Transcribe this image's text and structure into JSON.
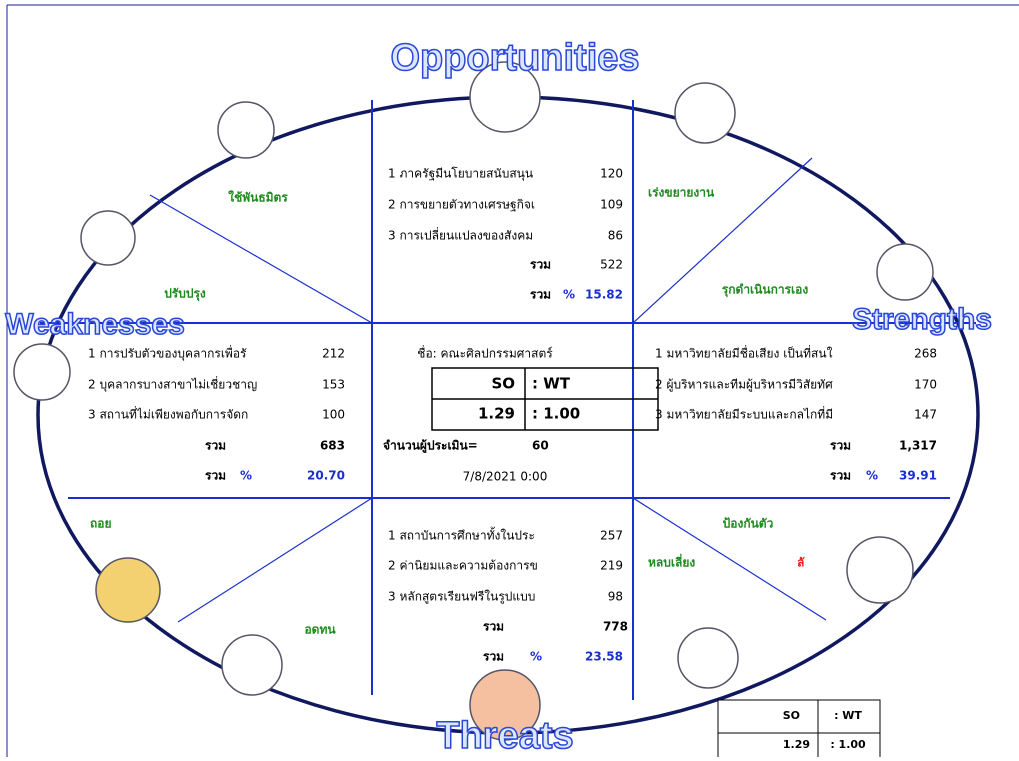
{
  "titles": {
    "opportunities": "Opportunities",
    "weaknesses": "Weaknesses",
    "strengths": "Strengths",
    "threats": "Threats"
  },
  "opportunities": {
    "items": [
      {
        "text": "1 ภาครัฐมีนโยบายสนับสนุน",
        "value": 120
      },
      {
        "text": "2 การขยายตัวทางเศรษฐกิจเ",
        "value": 109
      },
      {
        "text": "3 การเปลี่ยนแปลงของสังคม",
        "value": 86
      }
    ],
    "total_label": "รวม",
    "total": 522,
    "percent_label": "รวม",
    "percent_sign": "%",
    "percent": 15.82
  },
  "weaknesses": {
    "items": [
      {
        "text": "1 การปรับตัวของบุคลากรเพื่อรั",
        "value": 212
      },
      {
        "text": "2 บุคลากรบางสาขาไม่เชี่ยวชาญ",
        "value": 153
      },
      {
        "text": "3 สถานที่ไม่เพียงพอกับการจัดก",
        "value": 100
      }
    ],
    "total_label": "รวม",
    "total": 683,
    "percent_label": "รวม",
    "percent_sign": "%",
    "percent": "20.70"
  },
  "strengths": {
    "items": [
      {
        "text": "1 มหาวิทยาลัยมีชื่อเสียง เป็นที่สนใ",
        "value": 268
      },
      {
        "text": "2 ผู้บริหารและทีมผู้บริหารมีวิสัยทัศ",
        "value": 170
      },
      {
        "text": "3 มหาวิทยาลัยมีระบบและกลไกที่มี",
        "value": 147
      }
    ],
    "total_label": "รวม",
    "total": "1,317",
    "percent_label": "รวม",
    "percent_sign": "%",
    "percent": 39.91
  },
  "threats": {
    "items": [
      {
        "text": "1 สถาบันการศึกษาทั้งในประ",
        "value": 257
      },
      {
        "text": "2 ค่านิยมและความต้องการข",
        "value": 219
      },
      {
        "text": "3 หลักสูตรเรียนฟรีในรูปแบบ",
        "value": 98
      }
    ],
    "total_label": "รวม",
    "total": 778,
    "percent_label": "รวม",
    "percent_sign": "%",
    "percent": 23.58
  },
  "center": {
    "name": "ชื่อ: คณะศิลปกรรมศาสตร์",
    "ratio_header": [
      "SO",
      ": WT"
    ],
    "ratio_values": [
      1.29,
      ": 1.00"
    ],
    "evaluators_label": "จำนวนผู้ประเมิน=",
    "evaluators": 60,
    "date": "7/8/2021 0:00"
  },
  "strategies": {
    "ally": "ใช้พันธมิตร",
    "improve": "ปรับปรุง",
    "expand": "เร่งขยายงาน",
    "proactive": "รุกดำเนินการเอง",
    "retreat": "ถอย",
    "endure": "อดทน",
    "defend": "ป้องกันตัว",
    "avoid": "หลบเลี่ยง",
    "other": "ลั"
  },
  "summary_table": {
    "header": [
      "SO",
      ": WT"
    ],
    "values": [
      1.29,
      ": 1.00"
    ]
  }
}
